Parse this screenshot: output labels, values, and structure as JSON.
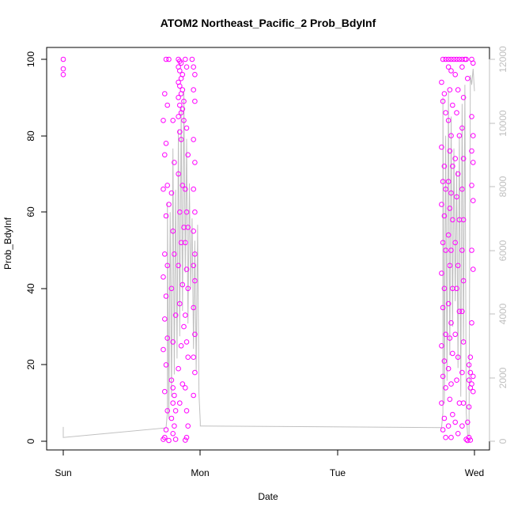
{
  "chart_data": {
    "type": "scatter",
    "title": "ATOM2 Northeast_Pacific_2 Prob_BdyInf",
    "xlabel": "Date",
    "ylabel": "Prob_BdyInf",
    "x_ticks": [
      "Sun",
      "Mon",
      "Tue",
      "Wed"
    ],
    "y_ticks": [
      "0",
      "20",
      "40",
      "60",
      "80",
      "100"
    ],
    "y_right_ticks": [
      "0",
      "2000",
      "4000",
      "6000",
      "8000",
      "10000",
      "12000"
    ],
    "xlim": [
      0,
      3.1
    ],
    "ylim": [
      0,
      100
    ],
    "y_right_lim": [
      0,
      12000
    ],
    "grid": false,
    "colors": {
      "points": "#ff00ff",
      "line": "#c0c0c0",
      "right_axis": "#bfbfbf",
      "axis": "#000000"
    },
    "series": [
      {
        "type": "scatter",
        "axis": "left",
        "points": [
          [
            0.0,
            100
          ],
          [
            0.0,
            97.5
          ],
          [
            0.0,
            96
          ],
          [
            0.75,
            100
          ],
          [
            0.77,
            100
          ],
          [
            0.74,
            91
          ],
          [
            0.76,
            88
          ],
          [
            0.73,
            84
          ],
          [
            0.75,
            78
          ],
          [
            0.74,
            75
          ],
          [
            0.76,
            67
          ],
          [
            0.73,
            66
          ],
          [
            0.77,
            62
          ],
          [
            0.75,
            59
          ],
          [
            0.74,
            49
          ],
          [
            0.76,
            46
          ],
          [
            0.73,
            43
          ],
          [
            0.75,
            38
          ],
          [
            0.74,
            32
          ],
          [
            0.76,
            27
          ],
          [
            0.73,
            24
          ],
          [
            0.75,
            20
          ],
          [
            0.74,
            13
          ],
          [
            0.76,
            8
          ],
          [
            0.75,
            3
          ],
          [
            0.74,
            1
          ],
          [
            0.73,
            0.5
          ],
          [
            0.77,
            0.2
          ],
          [
            0.79,
            16
          ],
          [
            0.8,
            14
          ],
          [
            0.81,
            12
          ],
          [
            0.8,
            10
          ],
          [
            0.82,
            8
          ],
          [
            0.79,
            6
          ],
          [
            0.81,
            4
          ],
          [
            0.8,
            2
          ],
          [
            0.82,
            0.5
          ],
          [
            0.8,
            55
          ],
          [
            0.81,
            49
          ],
          [
            0.79,
            40
          ],
          [
            0.82,
            33
          ],
          [
            0.8,
            26
          ],
          [
            0.79,
            65
          ],
          [
            0.81,
            73
          ],
          [
            0.8,
            84
          ],
          [
            0.84,
            100
          ],
          [
            0.85,
            99.5
          ],
          [
            0.86,
            99
          ],
          [
            0.84,
            98
          ],
          [
            0.85,
            97
          ],
          [
            0.87,
            96
          ],
          [
            0.86,
            95
          ],
          [
            0.84,
            94
          ],
          [
            0.85,
            93
          ],
          [
            0.87,
            92
          ],
          [
            0.86,
            91
          ],
          [
            0.84,
            90
          ],
          [
            0.88,
            89
          ],
          [
            0.85,
            88
          ],
          [
            0.87,
            87
          ],
          [
            0.86,
            86
          ],
          [
            0.84,
            85
          ],
          [
            0.88,
            84
          ],
          [
            0.85,
            81
          ],
          [
            0.86,
            79
          ],
          [
            0.84,
            70
          ],
          [
            0.87,
            67
          ],
          [
            0.85,
            60
          ],
          [
            0.88,
            56
          ],
          [
            0.86,
            52
          ],
          [
            0.84,
            46
          ],
          [
            0.87,
            41
          ],
          [
            0.85,
            36
          ],
          [
            0.88,
            30
          ],
          [
            0.86,
            25
          ],
          [
            0.84,
            19
          ],
          [
            0.87,
            15
          ],
          [
            0.85,
            10
          ],
          [
            0.89,
            100
          ],
          [
            0.9,
            98
          ],
          [
            0.9,
            82
          ],
          [
            0.91,
            75
          ],
          [
            0.89,
            66
          ],
          [
            0.9,
            60
          ],
          [
            0.91,
            56
          ],
          [
            0.89,
            52
          ],
          [
            0.9,
            45
          ],
          [
            0.91,
            40
          ],
          [
            0.89,
            33
          ],
          [
            0.9,
            26
          ],
          [
            0.91,
            22
          ],
          [
            0.89,
            14
          ],
          [
            0.9,
            8
          ],
          [
            0.91,
            4
          ],
          [
            0.9,
            1
          ],
          [
            0.89,
            0.3
          ],
          [
            0.94,
            100
          ],
          [
            0.95,
            98
          ],
          [
            0.96,
            96
          ],
          [
            0.95,
            92
          ],
          [
            0.96,
            89
          ],
          [
            0.95,
            79
          ],
          [
            0.96,
            73
          ],
          [
            0.95,
            66
          ],
          [
            0.96,
            60
          ],
          [
            0.95,
            55
          ],
          [
            0.96,
            49
          ],
          [
            0.95,
            46
          ],
          [
            0.96,
            42
          ],
          [
            0.95,
            35
          ],
          [
            0.96,
            28
          ],
          [
            0.95,
            22
          ],
          [
            0.96,
            18
          ],
          [
            0.95,
            12
          ]
        ]
      },
      {
        "type": "scatter",
        "axis": "left",
        "points": [
          [
            2.77,
            100
          ],
          [
            2.79,
            100
          ],
          [
            2.81,
            100
          ],
          [
            2.83,
            100
          ],
          [
            2.85,
            100
          ],
          [
            2.87,
            100
          ],
          [
            2.89,
            100
          ],
          [
            2.91,
            100
          ],
          [
            2.93,
            100
          ],
          [
            2.76,
            94
          ],
          [
            2.78,
            91
          ],
          [
            2.77,
            89
          ],
          [
            2.79,
            86
          ],
          [
            2.76,
            77
          ],
          [
            2.78,
            72
          ],
          [
            2.77,
            68
          ],
          [
            2.79,
            66
          ],
          [
            2.76,
            62
          ],
          [
            2.78,
            59
          ],
          [
            2.77,
            52
          ],
          [
            2.79,
            50
          ],
          [
            2.76,
            44
          ],
          [
            2.78,
            40
          ],
          [
            2.77,
            35
          ],
          [
            2.79,
            28
          ],
          [
            2.76,
            25
          ],
          [
            2.78,
            21
          ],
          [
            2.77,
            17
          ],
          [
            2.79,
            14
          ],
          [
            2.76,
            10
          ],
          [
            2.78,
            6
          ],
          [
            2.77,
            3
          ],
          [
            2.79,
            1
          ],
          [
            2.81,
            98
          ],
          [
            2.83,
            97
          ],
          [
            2.82,
            92
          ],
          [
            2.84,
            88
          ],
          [
            2.81,
            84
          ],
          [
            2.83,
            80
          ],
          [
            2.82,
            76
          ],
          [
            2.84,
            72
          ],
          [
            2.81,
            68
          ],
          [
            2.83,
            65
          ],
          [
            2.82,
            61
          ],
          [
            2.84,
            58
          ],
          [
            2.81,
            54
          ],
          [
            2.83,
            50
          ],
          [
            2.82,
            46
          ],
          [
            2.84,
            40
          ],
          [
            2.81,
            36
          ],
          [
            2.83,
            31
          ],
          [
            2.82,
            27
          ],
          [
            2.84,
            23
          ],
          [
            2.81,
            19
          ],
          [
            2.83,
            15
          ],
          [
            2.82,
            11
          ],
          [
            2.84,
            7
          ],
          [
            2.81,
            4
          ],
          [
            2.83,
            1
          ],
          [
            2.86,
            96
          ],
          [
            2.88,
            92
          ],
          [
            2.87,
            86
          ],
          [
            2.89,
            80
          ],
          [
            2.86,
            74
          ],
          [
            2.88,
            70
          ],
          [
            2.87,
            64
          ],
          [
            2.89,
            58
          ],
          [
            2.86,
            52
          ],
          [
            2.88,
            46
          ],
          [
            2.87,
            40
          ],
          [
            2.89,
            34
          ],
          [
            2.86,
            28
          ],
          [
            2.88,
            22
          ],
          [
            2.87,
            16
          ],
          [
            2.89,
            10
          ],
          [
            2.86,
            5
          ],
          [
            2.88,
            2
          ],
          [
            2.91,
            98
          ],
          [
            2.92,
            90
          ],
          [
            2.91,
            82
          ],
          [
            2.92,
            74
          ],
          [
            2.91,
            66
          ],
          [
            2.92,
            58
          ],
          [
            2.91,
            50
          ],
          [
            2.92,
            42
          ],
          [
            2.91,
            34
          ],
          [
            2.92,
            26
          ],
          [
            2.91,
            18
          ],
          [
            2.92,
            10
          ],
          [
            2.91,
            4
          ],
          [
            2.94,
            100
          ],
          [
            2.95,
            95
          ],
          [
            2.94,
            0.5
          ],
          [
            2.95,
            0.2
          ],
          [
            2.96,
            1
          ],
          [
            2.97,
            0.3
          ],
          [
            2.95,
            5
          ],
          [
            2.96,
            9
          ],
          [
            2.97,
            14
          ],
          [
            2.96,
            16
          ],
          [
            2.97,
            18
          ],
          [
            2.96,
            20
          ],
          [
            2.97,
            22
          ],
          [
            2.98,
            100
          ],
          [
            2.99,
            99
          ],
          [
            2.98,
            85
          ],
          [
            2.99,
            80
          ],
          [
            2.98,
            76
          ],
          [
            2.99,
            73
          ],
          [
            2.98,
            67
          ],
          [
            2.99,
            63
          ],
          [
            2.98,
            50
          ],
          [
            2.99,
            45
          ],
          [
            2.98,
            31
          ],
          [
            2.99,
            17
          ],
          [
            2.98,
            15
          ],
          [
            2.99,
            13
          ]
        ]
      },
      {
        "type": "line",
        "axis": "right",
        "points": [
          [
            0.0,
            450
          ],
          [
            0.0,
            120
          ],
          [
            0.75,
            420
          ],
          [
            0.76,
            900
          ],
          [
            0.76,
            7500
          ],
          [
            0.77,
            700
          ],
          [
            0.78,
            7200
          ],
          [
            0.79,
            1400
          ],
          [
            0.8,
            9200
          ],
          [
            0.81,
            2100
          ],
          [
            0.82,
            7900
          ],
          [
            0.83,
            2600
          ],
          [
            0.84,
            9800
          ],
          [
            0.85,
            3300
          ],
          [
            0.86,
            10500
          ],
          [
            0.87,
            4100
          ],
          [
            0.88,
            11000
          ],
          [
            0.89,
            5300
          ],
          [
            0.9,
            9500
          ],
          [
            0.91,
            3700
          ],
          [
            0.92,
            8100
          ],
          [
            0.93,
            4800
          ],
          [
            0.94,
            7000
          ],
          [
            0.95,
            2900
          ],
          [
            0.96,
            6300
          ],
          [
            0.97,
            2200
          ],
          [
            0.98,
            6800
          ],
          [
            0.99,
            1500
          ],
          [
            1.0,
            600
          ],
          [
            1.0,
            480
          ],
          [
            2.76,
            430
          ],
          [
            2.77,
            900
          ],
          [
            2.77,
            10800
          ],
          [
            2.78,
            1200
          ],
          [
            2.79,
            9600
          ],
          [
            2.8,
            1900
          ],
          [
            2.81,
            11000
          ],
          [
            2.82,
            2700
          ],
          [
            2.83,
            10200
          ],
          [
            2.84,
            3600
          ],
          [
            2.85,
            9200
          ],
          [
            2.86,
            4400
          ],
          [
            2.87,
            8500
          ],
          [
            2.88,
            2300
          ],
          [
            2.89,
            9600
          ],
          [
            2.9,
            1400
          ],
          [
            2.91,
            10600
          ],
          [
            2.92,
            3100
          ],
          [
            2.93,
            11200
          ],
          [
            2.94,
            900
          ],
          [
            2.95,
            200
          ],
          [
            2.96,
            150
          ],
          [
            2.97,
            11500
          ],
          [
            2.98,
            11200
          ],
          [
            2.99,
            11700
          ],
          [
            3.0,
            11000
          ]
        ]
      }
    ]
  }
}
